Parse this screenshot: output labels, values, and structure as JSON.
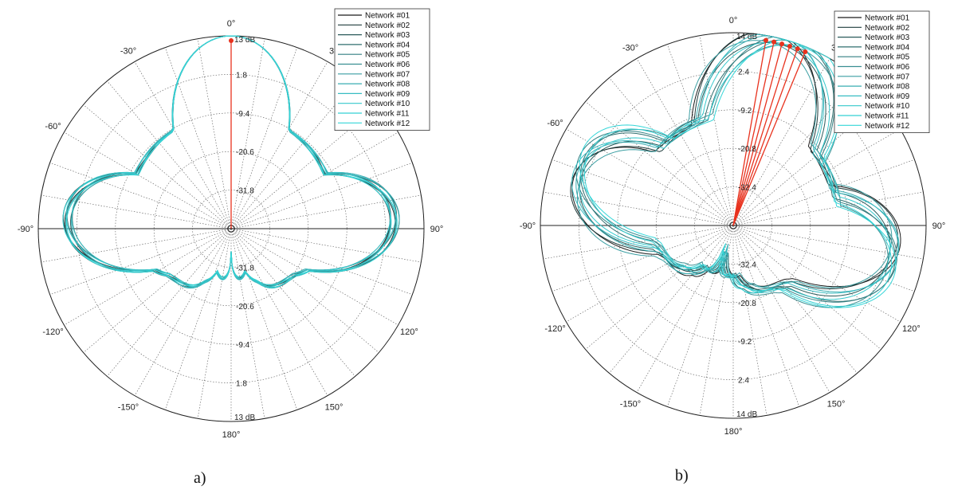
{
  "chart_data": [
    {
      "type": "polar-line",
      "caption": "a)",
      "unit_label": "13 dB",
      "radial_ticks": [
        "1.8",
        "-9.4",
        "-20.6",
        "-31.8"
      ],
      "rlim": [
        -43,
        13
      ],
      "angle_labels": [
        "0°",
        "-30°",
        "-60°",
        "-90°",
        "-120°",
        "-150°",
        "180°",
        "150°",
        "120°",
        "90°",
        "3"
      ],
      "series": [
        {
          "name": "Network #01",
          "color": "#1a1a1a"
        },
        {
          "name": "Network #02",
          "color": "#1f3b3b"
        },
        {
          "name": "Network #03",
          "color": "#2a5a5a"
        },
        {
          "name": "Network #04",
          "color": "#2f6f6f"
        },
        {
          "name": "Network #05",
          "color": "#327f82"
        },
        {
          "name": "Network #06",
          "color": "#3a8f92"
        },
        {
          "name": "Network #07",
          "color": "#3a9ea2"
        },
        {
          "name": "Network #08",
          "color": "#39adb2"
        },
        {
          "name": "Network #09",
          "color": "#38bcc2"
        },
        {
          "name": "Network #10",
          "color": "#36c8cc"
        },
        {
          "name": "Network #11",
          "color": "#35d0d3"
        },
        {
          "name": "Network #12",
          "color": "#34d6d8"
        }
      ],
      "main_beam_angles_deg": [
        0
      ]
    },
    {
      "type": "polar-line",
      "caption": "b)",
      "unit_label": "14 dB",
      "radial_ticks": [
        "2.4",
        "-9.2",
        "-20.8",
        "-32.4"
      ],
      "rlim": [
        -44,
        14
      ],
      "angle_labels": [
        "0°",
        "-30°",
        "-60°",
        "-90°",
        "-120°",
        "-150°",
        "180°",
        "150°",
        "120°",
        "90°",
        "3"
      ],
      "series": [
        {
          "name": "Network #01",
          "color": "#1a1a1a"
        },
        {
          "name": "Network #02",
          "color": "#1f3b3b"
        },
        {
          "name": "Network #03",
          "color": "#2a5a5a"
        },
        {
          "name": "Network #04",
          "color": "#2f6f6f"
        },
        {
          "name": "Network #05",
          "color": "#327f82"
        },
        {
          "name": "Network #06",
          "color": "#3a8f92"
        },
        {
          "name": "Network #07",
          "color": "#3a9ea2"
        },
        {
          "name": "Network #08",
          "color": "#39adb2"
        },
        {
          "name": "Network #09",
          "color": "#38bcc2"
        },
        {
          "name": "Network #10",
          "color": "#36c8cc"
        },
        {
          "name": "Network #11",
          "color": "#35d0d3"
        },
        {
          "name": "Network #12",
          "color": "#34d6d8"
        }
      ],
      "main_beam_angles_deg": [
        10,
        12.5,
        15,
        17.5,
        20,
        22.5
      ]
    }
  ],
  "colors": {
    "beam_marker": "#e8321e",
    "grid": "#555555"
  }
}
